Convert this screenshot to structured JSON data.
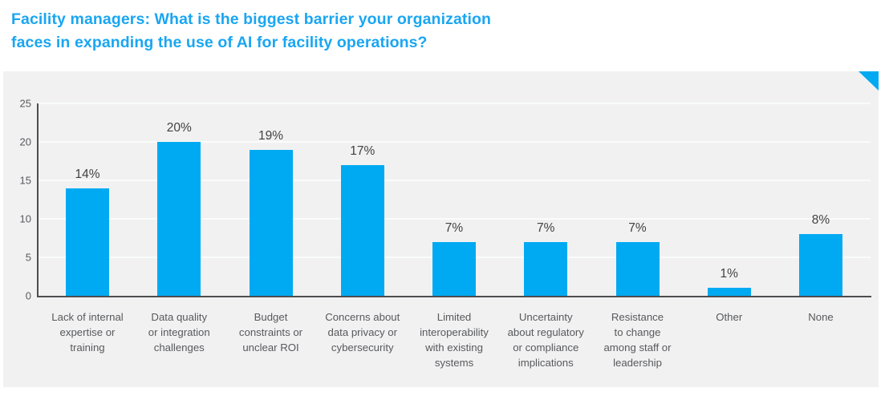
{
  "title": "Facility managers: What is the biggest barrier your organization\nfaces in expanding the use of AI for facility operations?",
  "colors": {
    "title_text": "#1aa6f1",
    "bar_fill": "#00aaf2",
    "corner_triangle": "#00aaf2",
    "panel_background": "#f1f1f2",
    "axis_line": "#4d4d4f",
    "tick_text": "#58595b",
    "category_text": "#58595b",
    "value_text": "#414042",
    "gridline": "#fafbfb",
    "page_background": "#ffffff"
  },
  "chart_data": {
    "type": "bar",
    "title": "Facility managers: What is the biggest barrier your organization faces in expanding the use of AI for facility operations?",
    "categories": [
      "Lack of internal\nexpertise or\ntraining",
      "Data quality\nor integration\nchallenges",
      "Budget\nconstraints or\nunclear ROI",
      "Concerns about\ndata privacy or\ncybersecurity",
      "Limited\ninteroperability\nwith existing\nsystems",
      "Uncertainty\nabout regulatory\nor compliance\nimplications",
      "Resistance\nto change\namong staff or\nleadership",
      "Other",
      "None"
    ],
    "values": [
      14,
      20,
      19,
      17,
      7,
      7,
      7,
      1,
      8
    ],
    "value_labels": [
      "14%",
      "20%",
      "19%",
      "17%",
      "7%",
      "7%",
      "7%",
      "1%",
      "8%"
    ],
    "xlabel": "",
    "ylabel": "",
    "ylim": [
      0,
      25
    ],
    "y_ticks": [
      0,
      5,
      10,
      15,
      20,
      25
    ],
    "grid": "horizontal-light",
    "legend": "none",
    "bar_orientation": "vertical"
  }
}
